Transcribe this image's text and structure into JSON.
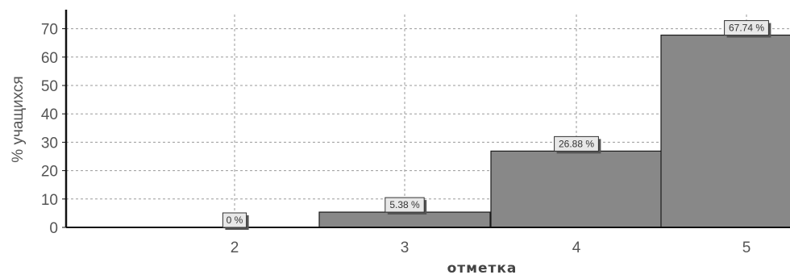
{
  "chart_data": {
    "type": "bar",
    "categories": [
      "2",
      "3",
      "4",
      "5"
    ],
    "values": [
      0,
      5.38,
      26.88,
      67.74
    ],
    "data_labels": [
      "0 %",
      "5.38 %",
      "26.88 %",
      "67.74 %"
    ],
    "title": "",
    "xlabel": "отметка",
    "ylabel": "% учащихся",
    "ylim": [
      0,
      75
    ],
    "yticks": [
      "0",
      "10",
      "20",
      "30",
      "40",
      "50",
      "60",
      "70"
    ],
    "grid": true,
    "legend": "none"
  },
  "colors": {
    "bar": "#888888",
    "bar_edge": "#1a1a1a",
    "grid": "#9a9a9a",
    "axis": "#111111",
    "label_box": "#e8e8e8"
  }
}
